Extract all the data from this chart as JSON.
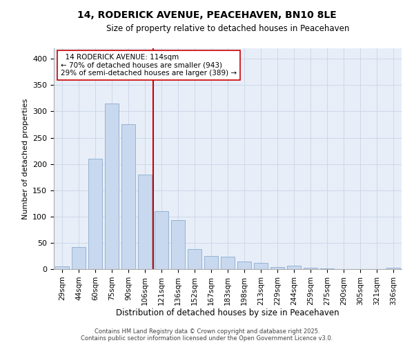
{
  "title": "14, RODERICK AVENUE, PEACEHAVEN, BN10 8LE",
  "subtitle": "Size of property relative to detached houses in Peacehaven",
  "xlabel": "Distribution of detached houses by size in Peacehaven",
  "ylabel": "Number of detached properties",
  "categories": [
    "29sqm",
    "44sqm",
    "60sqm",
    "75sqm",
    "90sqm",
    "106sqm",
    "121sqm",
    "136sqm",
    "152sqm",
    "167sqm",
    "183sqm",
    "198sqm",
    "213sqm",
    "229sqm",
    "244sqm",
    "259sqm",
    "275sqm",
    "290sqm",
    "305sqm",
    "321sqm",
    "336sqm"
  ],
  "values": [
    5,
    42,
    210,
    315,
    275,
    180,
    110,
    93,
    38,
    25,
    24,
    15,
    12,
    4,
    6,
    2,
    1,
    0,
    0,
    0,
    2
  ],
  "bar_color": "#c8d8ee",
  "bar_edge_color": "#8aadce",
  "vline_x": 5.5,
  "vline_color": "#cc0000",
  "annotation_text": "  14 RODERICK AVENUE: 114sqm  \n← 70% of detached houses are smaller (943)\n29% of semi-detached houses are larger (389) →",
  "annotation_box_color": "#ffffff",
  "annotation_box_edge": "#cc0000",
  "ylim": [
    0,
    420
  ],
  "yticks": [
    0,
    50,
    100,
    150,
    200,
    250,
    300,
    350,
    400
  ],
  "footer_line1": "Contains HM Land Registry data © Crown copyright and database right 2025.",
  "footer_line2": "Contains public sector information licensed under the Open Government Licence v3.0.",
  "grid_color": "#cdd8e8",
  "background_color": "#e8eef8"
}
